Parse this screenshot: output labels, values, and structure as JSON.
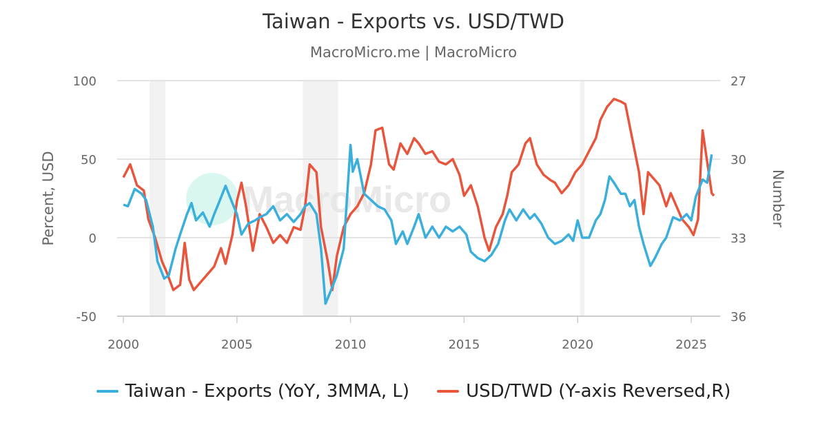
{
  "chart_data": {
    "type": "line",
    "title": "Taiwan - Exports vs. USD/TWD",
    "subtitle": "MacroMicro.me | MacroMicro",
    "watermark": "MacroMicro",
    "x_ticks": [
      "2000",
      "2005",
      "2010",
      "2015",
      "2020",
      "2025"
    ],
    "xlim": [
      2000,
      2026.2
    ],
    "y_left": {
      "label": "Percent, USD",
      "ticks": [
        "100",
        "50",
        "0",
        "-50"
      ],
      "range": [
        -50,
        100
      ]
    },
    "y_right": {
      "label": "Number",
      "ticks": [
        "27",
        "30",
        "33",
        "36"
      ],
      "range": [
        27,
        36
      ],
      "reversed": true
    },
    "grid": true,
    "legend_position": "bottom",
    "recession_bands": [
      [
        2001.15,
        2001.85
      ],
      [
        2007.9,
        2009.45
      ],
      [
        2020.1,
        2020.3
      ]
    ],
    "band_color": "#f2f2f2",
    "series": [
      {
        "name": "Taiwan - Exports (YoY, 3MMA, L)",
        "axis": "left",
        "color": "#3aafdc",
        "x": [
          2000.0,
          2000.2,
          2000.5,
          2000.8,
          2001.0,
          2001.3,
          2001.5,
          2001.8,
          2002.0,
          2002.3,
          2002.5,
          2002.8,
          2003.0,
          2003.2,
          2003.5,
          2003.8,
          2004.0,
          2004.2,
          2004.5,
          2004.8,
          2005.0,
          2005.2,
          2005.5,
          2005.8,
          2006.0,
          2006.3,
          2006.6,
          2006.9,
          2007.2,
          2007.5,
          2007.8,
          2008.0,
          2008.2,
          2008.5,
          2008.7,
          2008.9,
          2009.1,
          2009.4,
          2009.7,
          2010.0,
          2010.1,
          2010.3,
          2010.6,
          2010.9,
          2011.2,
          2011.5,
          2011.8,
          2012.0,
          2012.3,
          2012.5,
          2012.8,
          2013.0,
          2013.3,
          2013.6,
          2013.9,
          2014.2,
          2014.5,
          2014.8,
          2015.1,
          2015.3,
          2015.6,
          2015.9,
          2016.2,
          2016.5,
          2016.8,
          2017.0,
          2017.3,
          2017.6,
          2017.9,
          2018.1,
          2018.4,
          2018.7,
          2019.0,
          2019.3,
          2019.6,
          2019.8,
          2020.0,
          2020.2,
          2020.5,
          2020.8,
          2021.0,
          2021.2,
          2021.4,
          2021.6,
          2021.9,
          2022.1,
          2022.3,
          2022.5,
          2022.7,
          2022.9,
          2023.2,
          2023.4,
          2023.7,
          2023.9,
          2024.2,
          2024.5,
          2024.8,
          2025.0,
          2025.2,
          2025.5,
          2025.7,
          2025.9
        ],
        "values": [
          21,
          20,
          31,
          28,
          24,
          7,
          -15,
          -26,
          -24,
          -7,
          2,
          15,
          22,
          11,
          16,
          7,
          15,
          22,
          33,
          22,
          15,
          2,
          9,
          11,
          13,
          15,
          20,
          11,
          15,
          10,
          15,
          20,
          22,
          15,
          -7,
          -42,
          -35,
          -24,
          -7,
          59,
          42,
          50,
          28,
          24,
          20,
          18,
          11,
          -4,
          4,
          -4,
          7,
          15,
          0,
          7,
          0,
          7,
          4,
          7,
          2,
          -9,
          -13,
          -15,
          -11,
          -4,
          11,
          18,
          11,
          18,
          12,
          15,
          9,
          0,
          -4,
          -2,
          2,
          -2,
          11,
          0,
          0,
          11,
          15,
          24,
          39,
          35,
          28,
          28,
          20,
          24,
          7,
          -4,
          -18,
          -13,
          -4,
          0,
          13,
          11,
          15,
          11,
          26,
          37,
          35,
          53
        ]
      },
      {
        "name": "USD/TWD (Y-axis Reversed,R)",
        "axis": "right",
        "color": "#e8553d",
        "x": [
          2000.0,
          2000.3,
          2000.6,
          2000.9,
          2001.1,
          2001.4,
          2001.7,
          2001.9,
          2002.2,
          2002.5,
          2002.7,
          2002.9,
          2003.1,
          2003.4,
          2003.7,
          2004.0,
          2004.3,
          2004.5,
          2004.8,
          2005.0,
          2005.2,
          2005.4,
          2005.7,
          2006.0,
          2006.3,
          2006.6,
          2006.9,
          2007.2,
          2007.5,
          2007.8,
          2008.0,
          2008.2,
          2008.5,
          2008.7,
          2009.0,
          2009.2,
          2009.4,
          2009.7,
          2010.0,
          2010.3,
          2010.6,
          2010.9,
          2011.1,
          2011.4,
          2011.7,
          2011.9,
          2012.2,
          2012.5,
          2012.8,
          2013.0,
          2013.3,
          2013.6,
          2013.9,
          2014.2,
          2014.5,
          2014.8,
          2015.0,
          2015.3,
          2015.6,
          2015.9,
          2016.1,
          2016.4,
          2016.7,
          2016.9,
          2017.1,
          2017.4,
          2017.7,
          2017.9,
          2018.2,
          2018.5,
          2018.8,
          2019.0,
          2019.3,
          2019.6,
          2019.9,
          2020.2,
          2020.5,
          2020.8,
          2021.0,
          2021.3,
          2021.6,
          2021.9,
          2022.1,
          2022.4,
          2022.7,
          2022.9,
          2023.1,
          2023.4,
          2023.6,
          2023.9,
          2024.1,
          2024.4,
          2024.6,
          2024.9,
          2025.1,
          2025.3,
          2025.5,
          2025.7,
          2025.9,
          2026.0
        ],
        "values": [
          30.7,
          30.2,
          31.0,
          31.2,
          32.3,
          33.0,
          33.9,
          34.3,
          35.0,
          34.8,
          33.2,
          34.6,
          35.0,
          34.7,
          34.4,
          34.1,
          33.4,
          34.0,
          32.9,
          31.6,
          30.9,
          31.8,
          33.5,
          32.1,
          32.6,
          33.2,
          32.9,
          33.2,
          32.6,
          32.7,
          31.8,
          30.2,
          30.5,
          32.6,
          33.9,
          35.0,
          33.7,
          32.6,
          32.1,
          31.8,
          31.3,
          30.2,
          28.9,
          28.8,
          30.2,
          30.4,
          29.4,
          29.8,
          29.2,
          29.4,
          29.8,
          29.7,
          30.1,
          30.2,
          30.0,
          30.6,
          31.4,
          31.0,
          31.8,
          33.0,
          33.5,
          32.6,
          32.1,
          31.4,
          30.5,
          30.2,
          29.4,
          29.2,
          30.2,
          30.6,
          30.8,
          30.9,
          31.3,
          31.0,
          30.5,
          30.2,
          29.7,
          29.2,
          28.5,
          28.0,
          27.7,
          27.8,
          27.9,
          29.2,
          30.5,
          32.1,
          30.5,
          30.8,
          31.0,
          31.8,
          31.3,
          31.9,
          32.3,
          32.6,
          32.9,
          32.3,
          28.9,
          30.1,
          31.3,
          31.4
        ]
      }
    ]
  }
}
